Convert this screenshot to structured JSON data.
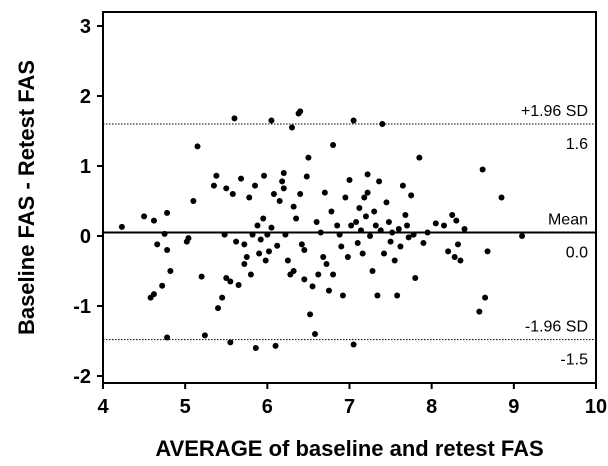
{
  "chart_data": {
    "type": "scatter",
    "xlabel": "AVERAGE of baseline and retest FAS",
    "ylabel": "Baseline FAS - Retest FAS",
    "xlim": [
      4,
      10
    ],
    "ylim": [
      -2.1,
      3.2
    ],
    "x_ticks": [
      "4",
      "5",
      "6",
      "7",
      "8",
      "9",
      "10"
    ],
    "y_ticks": [
      "-2",
      "-1",
      "0",
      "1",
      "2",
      "3"
    ],
    "grid": false,
    "reference_lines": [
      {
        "name": "+1.96 SD",
        "value_label": "1.6",
        "y": 1.6,
        "style": "dotted"
      },
      {
        "name": "Mean",
        "value_label": "0.0",
        "y": 0.05,
        "style": "solid"
      },
      {
        "name": "-1.96 SD",
        "value_label": "-1.5",
        "y": -1.48,
        "style": "dotted"
      }
    ],
    "points": [
      [
        4.23,
        0.13
      ],
      [
        4.5,
        0.28
      ],
      [
        4.62,
        0.22
      ],
      [
        4.58,
        -0.88
      ],
      [
        4.62,
        -0.83
      ],
      [
        4.66,
        -0.12
      ],
      [
        4.72,
        -0.71
      ],
      [
        4.75,
        0.03
      ],
      [
        4.78,
        -0.2
      ],
      [
        4.78,
        0.33
      ],
      [
        4.78,
        -1.45
      ],
      [
        4.82,
        -0.5
      ],
      [
        5.02,
        -0.08
      ],
      [
        5.04,
        -0.03
      ],
      [
        5.1,
        0.5
      ],
      [
        5.15,
        1.28
      ],
      [
        5.2,
        -0.58
      ],
      [
        5.24,
        -1.42
      ],
      [
        5.35,
        0.72
      ],
      [
        5.38,
        0.86
      ],
      [
        5.4,
        -1.03
      ],
      [
        5.45,
        -0.88
      ],
      [
        5.48,
        0.02
      ],
      [
        5.5,
        -0.6
      ],
      [
        5.5,
        0.68
      ],
      [
        5.55,
        -0.65
      ],
      [
        5.55,
        -1.52
      ],
      [
        5.58,
        0.6
      ],
      [
        5.6,
        1.68
      ],
      [
        5.62,
        -0.08
      ],
      [
        5.65,
        -0.7
      ],
      [
        5.68,
        0.82
      ],
      [
        5.72,
        -0.4
      ],
      [
        5.72,
        -0.12
      ],
      [
        5.75,
        -0.3
      ],
      [
        5.78,
        0.55
      ],
      [
        5.8,
        -0.55
      ],
      [
        5.82,
        0.02
      ],
      [
        5.85,
        0.72
      ],
      [
        5.86,
        -1.6
      ],
      [
        5.88,
        0.15
      ],
      [
        5.9,
        -0.25
      ],
      [
        5.92,
        -0.05
      ],
      [
        5.95,
        0.25
      ],
      [
        5.96,
        0.86
      ],
      [
        5.98,
        -0.35
      ],
      [
        6.0,
        0.02
      ],
      [
        6.02,
        -0.22
      ],
      [
        6.05,
        1.65
      ],
      [
        6.05,
        0.12
      ],
      [
        6.08,
        0.6
      ],
      [
        6.1,
        -1.57
      ],
      [
        6.12,
        -0.14
      ],
      [
        6.15,
        0.5
      ],
      [
        6.18,
        0.78
      ],
      [
        6.2,
        0.9
      ],
      [
        6.2,
        0.68
      ],
      [
        6.22,
        0.02
      ],
      [
        6.25,
        -0.35
      ],
      [
        6.28,
        -0.55
      ],
      [
        6.3,
        1.55
      ],
      [
        6.32,
        0.42
      ],
      [
        6.32,
        -0.5
      ],
      [
        6.35,
        0.25
      ],
      [
        6.38,
        1.75
      ],
      [
        6.4,
        0.6
      ],
      [
        6.4,
        1.78
      ],
      [
        6.42,
        -0.12
      ],
      [
        6.45,
        -0.62
      ],
      [
        6.45,
        -0.2
      ],
      [
        6.48,
        0.85
      ],
      [
        6.5,
        1.12
      ],
      [
        6.52,
        -1.12
      ],
      [
        6.55,
        -0.72
      ],
      [
        6.58,
        -1.4
      ],
      [
        6.6,
        0.2
      ],
      [
        6.62,
        -0.55
      ],
      [
        6.65,
        0.05
      ],
      [
        6.68,
        -0.3
      ],
      [
        6.7,
        0.62
      ],
      [
        6.72,
        -0.4
      ],
      [
        6.75,
        -0.78
      ],
      [
        6.78,
        0.35
      ],
      [
        6.8,
        1.3
      ],
      [
        6.8,
        -0.55
      ],
      [
        6.85,
        0.15
      ],
      [
        6.88,
        0.02
      ],
      [
        6.9,
        -0.15
      ],
      [
        6.92,
        -0.85
      ],
      [
        6.95,
        0.55
      ],
      [
        6.98,
        -0.3
      ],
      [
        7.0,
        0.8
      ],
      [
        7.02,
        0.15
      ],
      [
        7.05,
        1.65
      ],
      [
        7.05,
        -1.55
      ],
      [
        7.08,
        0.2
      ],
      [
        7.1,
        -0.1
      ],
      [
        7.12,
        0.4
      ],
      [
        7.14,
        0.08
      ],
      [
        7.16,
        -0.25
      ],
      [
        7.18,
        0.55
      ],
      [
        7.2,
        0.28
      ],
      [
        7.22,
        0.88
      ],
      [
        7.22,
        0.62
      ],
      [
        7.25,
        0.0
      ],
      [
        7.28,
        -0.5
      ],
      [
        7.3,
        0.35
      ],
      [
        7.32,
        0.15
      ],
      [
        7.34,
        -0.85
      ],
      [
        7.36,
        0.78
      ],
      [
        7.38,
        0.08
      ],
      [
        7.4,
        1.6
      ],
      [
        7.42,
        -0.25
      ],
      [
        7.45,
        0.48
      ],
      [
        7.48,
        0.2
      ],
      [
        7.5,
        -0.08
      ],
      [
        7.52,
        0.05
      ],
      [
        7.55,
        -0.35
      ],
      [
        7.58,
        -0.85
      ],
      [
        7.6,
        0.1
      ],
      [
        7.62,
        -0.15
      ],
      [
        7.65,
        0.72
      ],
      [
        7.68,
        0.3
      ],
      [
        7.7,
        0.15
      ],
      [
        7.72,
        -0.02
      ],
      [
        7.75,
        0.58
      ],
      [
        7.78,
        0.02
      ],
      [
        7.8,
        -0.6
      ],
      [
        7.85,
        1.12
      ],
      [
        7.9,
        -0.1
      ],
      [
        7.95,
        0.05
      ],
      [
        8.05,
        0.18
      ],
      [
        8.15,
        0.15
      ],
      [
        8.2,
        -0.22
      ],
      [
        8.25,
        0.3
      ],
      [
        8.28,
        -0.3
      ],
      [
        8.3,
        0.22
      ],
      [
        8.32,
        -0.12
      ],
      [
        8.35,
        -0.35
      ],
      [
        8.4,
        0.1
      ],
      [
        8.58,
        -1.08
      ],
      [
        8.62,
        0.95
      ],
      [
        8.65,
        -0.88
      ],
      [
        8.68,
        -0.22
      ],
      [
        8.85,
        0.55
      ],
      [
        9.1,
        0.0
      ]
    ]
  }
}
